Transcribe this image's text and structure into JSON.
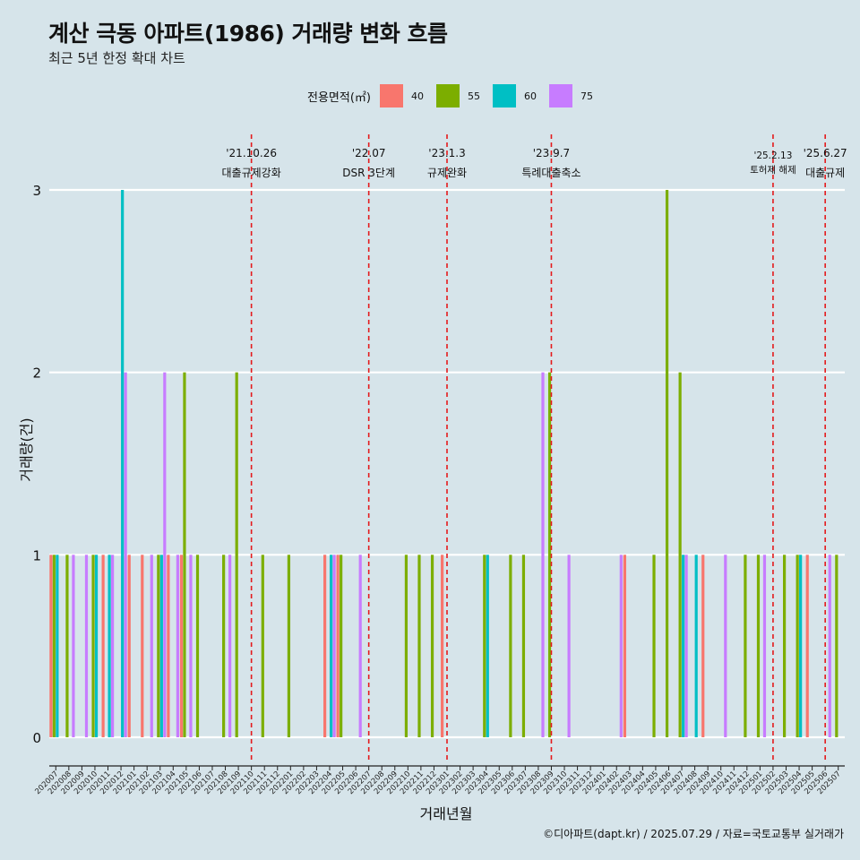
{
  "title": "계산 극동 아파트(1986) 거래량 변화 흐름",
  "subtitle": "최근 5년 한정 확대 차트",
  "caption": "©디아파트(dapt.kr) / 2025.07.29 / 자료=국토교통부 실거래가",
  "legend": {
    "title": "전용면적(㎡)",
    "items": [
      {
        "label": "40",
        "color": "#F8766D"
      },
      {
        "label": "55",
        "color": "#7CAE00"
      },
      {
        "label": "60",
        "color": "#00BFC4"
      },
      {
        "label": "75",
        "color": "#C77CFF"
      }
    ]
  },
  "chart_data": {
    "type": "bar",
    "title": "계산 극동 아파트(1986) 거래량 변화 흐름",
    "subtitle": "최근 5년 한정 확대 차트",
    "xlabel": "거래년월",
    "ylabel": "거래량(건)",
    "ylim": [
      0,
      3
    ],
    "yticks": [
      0,
      1,
      2,
      3
    ],
    "grid": true,
    "legend_position": "top",
    "categories": [
      "202007",
      "202008",
      "202009",
      "202010",
      "202011",
      "202012",
      "202101",
      "202102",
      "202103",
      "202104",
      "202105",
      "202106",
      "202107",
      "202108",
      "202109",
      "202110",
      "202111",
      "202112",
      "202201",
      "202202",
      "202203",
      "202204",
      "202205",
      "202206",
      "202207",
      "202208",
      "202209",
      "202210",
      "202211",
      "202212",
      "202301",
      "202302",
      "202303",
      "202304",
      "202305",
      "202306",
      "202307",
      "202308",
      "202309",
      "202310",
      "202311",
      "202312",
      "202401",
      "202402",
      "202403",
      "202404",
      "202405",
      "202406",
      "202407",
      "202408",
      "202409",
      "202410",
      "202411",
      "202412",
      "202501",
      "202502",
      "202503",
      "202504",
      "202505",
      "202506",
      "202507"
    ],
    "series": [
      {
        "name": "40",
        "color": "#F8766D",
        "values": [
          1,
          0,
          0,
          0,
          1,
          0,
          1,
          1,
          0,
          1,
          1,
          0,
          0,
          0,
          0,
          0,
          0,
          0,
          0,
          0,
          0,
          1,
          1,
          0,
          0,
          0,
          0,
          0,
          0,
          0,
          1,
          0,
          0,
          0,
          0,
          0,
          0,
          0,
          0,
          0,
          0,
          0,
          0,
          0,
          1,
          0,
          0,
          0,
          0,
          0,
          1,
          0,
          0,
          0,
          0,
          0,
          0,
          0,
          1,
          0,
          0
        ]
      },
      {
        "name": "55",
        "color": "#7CAE00",
        "values": [
          1,
          1,
          0,
          1,
          0,
          0,
          0,
          0,
          1,
          0,
          2,
          1,
          0,
          1,
          2,
          0,
          1,
          0,
          1,
          0,
          0,
          0,
          1,
          0,
          0,
          0,
          0,
          1,
          1,
          1,
          0,
          0,
          0,
          1,
          0,
          1,
          1,
          0,
          2,
          0,
          0,
          0,
          0,
          0,
          0,
          0,
          1,
          3,
          2,
          0,
          0,
          0,
          0,
          1,
          1,
          0,
          1,
          1,
          0,
          0,
          1
        ]
      },
      {
        "name": "60",
        "color": "#00BFC4",
        "values": [
          1,
          0,
          0,
          1,
          1,
          3,
          0,
          0,
          1,
          0,
          0,
          0,
          0,
          0,
          0,
          0,
          0,
          0,
          0,
          0,
          0,
          1,
          0,
          0,
          0,
          0,
          0,
          0,
          0,
          0,
          0,
          0,
          0,
          1,
          0,
          0,
          0,
          0,
          0,
          0,
          0,
          0,
          0,
          0,
          0,
          0,
          0,
          0,
          1,
          1,
          0,
          0,
          0,
          0,
          0,
          0,
          0,
          1,
          0,
          0,
          0
        ]
      },
      {
        "name": "75",
        "color": "#C77CFF",
        "values": [
          0,
          1,
          1,
          0,
          1,
          2,
          0,
          1,
          2,
          1,
          1,
          0,
          0,
          1,
          0,
          0,
          0,
          0,
          0,
          0,
          0,
          1,
          0,
          1,
          0,
          0,
          0,
          0,
          0,
          0,
          0,
          0,
          0,
          0,
          0,
          0,
          0,
          2,
          0,
          1,
          0,
          0,
          0,
          1,
          0,
          0,
          0,
          0,
          1,
          0,
          0,
          1,
          0,
          0,
          1,
          0,
          0,
          0,
          0,
          1,
          0
        ]
      }
    ],
    "events": [
      {
        "date": "'21.10.26",
        "label": "대출규제강화",
        "at": "202110"
      },
      {
        "date": "'22.07",
        "label": "DSR 3단계",
        "at": "202207"
      },
      {
        "date": "'23.1.3",
        "label": "규제완화",
        "at": "202301"
      },
      {
        "date": "'23.9.7",
        "label": "특례대출축소",
        "at": "202309"
      },
      {
        "date": "'25.2.13",
        "label": "토허제 해제",
        "at": "202502"
      },
      {
        "date": "'25.6.27",
        "label": "대출규제",
        "at": "202506"
      }
    ]
  }
}
